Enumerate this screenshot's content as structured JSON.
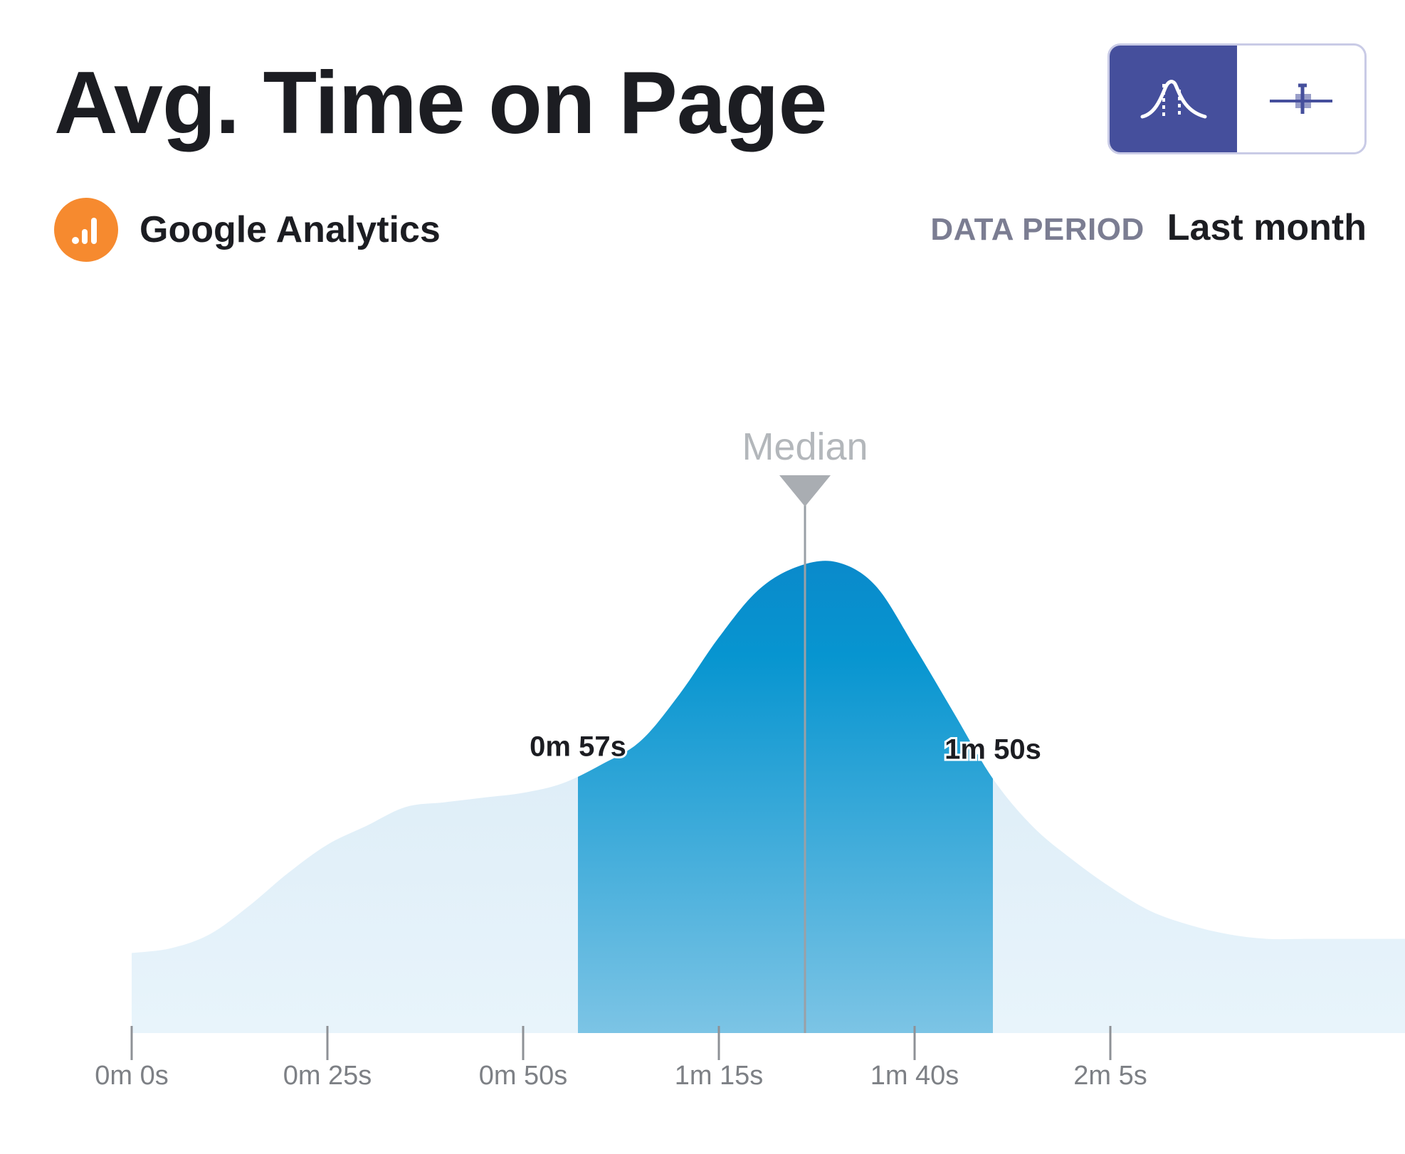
{
  "header": {
    "title": "Avg. Time on Page",
    "view_toggle": [
      {
        "icon": "bell-curve-icon",
        "active": true
      },
      {
        "icon": "box-plot-icon",
        "active": false
      }
    ]
  },
  "source": {
    "name": "Google Analytics",
    "icon": "google-analytics-icon"
  },
  "period": {
    "label": "DATA PERIOD",
    "value": "Last month"
  },
  "colors": {
    "accent": "#454f9c",
    "source": "#f68a2f",
    "highlight": "#0a94d2",
    "light_fill": "#dcedf7",
    "median": "#a9adb2"
  },
  "chart_data": {
    "type": "area",
    "x_unit": "seconds",
    "xlim": [
      0,
      177
    ],
    "x_ticks": [
      {
        "value": 0,
        "label": "0m 0s"
      },
      {
        "value": 25,
        "label": "0m 25s"
      },
      {
        "value": 50,
        "label": "0m 50s"
      },
      {
        "value": 75,
        "label": "1m 15s"
      },
      {
        "value": 100,
        "label": "1m 40s"
      },
      {
        "value": 125,
        "label": "2m 5s"
      }
    ],
    "density": {
      "x": [
        0,
        5,
        10,
        15,
        20,
        25,
        30,
        35,
        40,
        45,
        50,
        55,
        60,
        65,
        70,
        75,
        80,
        85,
        90,
        95,
        100,
        105,
        110,
        115,
        120,
        125,
        130,
        135,
        140,
        145,
        150,
        155,
        160,
        165,
        170,
        175,
        177
      ],
      "y": [
        0.17,
        0.18,
        0.21,
        0.27,
        0.34,
        0.4,
        0.44,
        0.48,
        0.49,
        0.5,
        0.51,
        0.53,
        0.57,
        0.62,
        0.72,
        0.84,
        0.94,
        0.99,
        1.0,
        0.95,
        0.82,
        0.68,
        0.54,
        0.44,
        0.37,
        0.31,
        0.26,
        0.23,
        0.21,
        0.2,
        0.2,
        0.2,
        0.2,
        0.2,
        0.2,
        0.2,
        0.2
      ]
    },
    "highlight_range": {
      "start": 57,
      "end": 110,
      "start_label": "0m 57s",
      "end_label": "1m 50s"
    },
    "median": {
      "value": 86,
      "label": "Median"
    }
  }
}
